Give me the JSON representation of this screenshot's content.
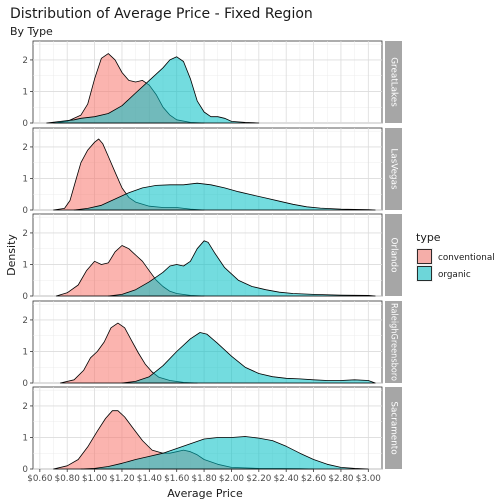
{
  "chart_data": {
    "type": "area",
    "title": "Distribution of Average Price - Fixed Region",
    "subtitle": "By Type",
    "xlabel": "Average Price",
    "ylabel": "Density",
    "xlim": [
      0.55,
      3.1
    ],
    "ylim": [
      0,
      2.6
    ],
    "x_ticks": [
      0.6,
      0.8,
      1.0,
      1.2,
      1.4,
      1.6,
      1.8,
      2.0,
      2.2,
      2.4,
      2.6,
      2.8,
      3.0
    ],
    "x_tick_labels": [
      "$0.60",
      "$0.80",
      "$1.00",
      "$1.20",
      "$1.40",
      "$1.60",
      "$1.80",
      "$2.00",
      "$2.20",
      "$2.40",
      "$2.60",
      "$2.80",
      "$3.00"
    ],
    "y_ticks": [
      0,
      1,
      2
    ],
    "y_tick_labels": [
      "0",
      "1",
      "2"
    ],
    "grid": true,
    "legend": {
      "title": "type",
      "position": "right",
      "entries": [
        {
          "label": "conventional",
          "color": "#F8766D"
        },
        {
          "label": "organic",
          "color": "#00BFC4"
        }
      ]
    },
    "panels": [
      {
        "region": "GreatLakes",
        "series": [
          {
            "type": "conventional",
            "points": [
              [
                0.7,
                0
              ],
              [
                0.8,
                0.05
              ],
              [
                0.9,
                0.25
              ],
              [
                0.95,
                0.6
              ],
              [
                1.0,
                1.4
              ],
              [
                1.05,
                2.05
              ],
              [
                1.1,
                2.2
              ],
              [
                1.15,
                2.0
              ],
              [
                1.2,
                1.6
              ],
              [
                1.25,
                1.35
              ],
              [
                1.3,
                1.3
              ],
              [
                1.35,
                1.35
              ],
              [
                1.4,
                1.2
              ],
              [
                1.45,
                0.9
              ],
              [
                1.5,
                0.5
              ],
              [
                1.55,
                0.25
              ],
              [
                1.6,
                0.1
              ],
              [
                1.7,
                0.02
              ],
              [
                1.8,
                0
              ]
            ]
          },
          {
            "type": "organic",
            "points": [
              [
                0.65,
                0
              ],
              [
                0.75,
                0.05
              ],
              [
                0.85,
                0.1
              ],
              [
                0.9,
                0.15
              ],
              [
                1.0,
                0.2
              ],
              [
                1.1,
                0.3
              ],
              [
                1.2,
                0.55
              ],
              [
                1.3,
                0.95
              ],
              [
                1.4,
                1.35
              ],
              [
                1.5,
                1.75
              ],
              [
                1.55,
                2.0
              ],
              [
                1.6,
                2.1
              ],
              [
                1.65,
                1.95
              ],
              [
                1.7,
                1.4
              ],
              [
                1.75,
                0.7
              ],
              [
                1.8,
                0.35
              ],
              [
                1.85,
                0.2
              ],
              [
                1.9,
                0.2
              ],
              [
                1.95,
                0.15
              ],
              [
                2.0,
                0.05
              ],
              [
                2.1,
                0.02
              ],
              [
                2.2,
                0
              ]
            ]
          }
        ]
      },
      {
        "region": "LasVegas",
        "series": [
          {
            "type": "conventional",
            "points": [
              [
                0.7,
                0
              ],
              [
                0.78,
                0.05
              ],
              [
                0.82,
                0.3
              ],
              [
                0.86,
                0.9
              ],
              [
                0.9,
                1.5
              ],
              [
                0.95,
                1.9
              ],
              [
                1.0,
                2.15
              ],
              [
                1.03,
                2.25
              ],
              [
                1.06,
                2.1
              ],
              [
                1.1,
                1.7
              ],
              [
                1.15,
                1.2
              ],
              [
                1.2,
                0.7
              ],
              [
                1.25,
                0.4
              ],
              [
                1.3,
                0.25
              ],
              [
                1.4,
                0.12
              ],
              [
                1.5,
                0.08
              ],
              [
                1.6,
                0.08
              ],
              [
                1.7,
                0.03
              ],
              [
                1.8,
                0
              ]
            ]
          },
          {
            "type": "organic",
            "points": [
              [
                0.85,
                0
              ],
              [
                0.95,
                0.05
              ],
              [
                1.05,
                0.15
              ],
              [
                1.15,
                0.35
              ],
              [
                1.25,
                0.55
              ],
              [
                1.35,
                0.7
              ],
              [
                1.45,
                0.78
              ],
              [
                1.55,
                0.8
              ],
              [
                1.65,
                0.8
              ],
              [
                1.75,
                0.85
              ],
              [
                1.85,
                0.8
              ],
              [
                1.95,
                0.7
              ],
              [
                2.05,
                0.58
              ],
              [
                2.15,
                0.48
              ],
              [
                2.25,
                0.38
              ],
              [
                2.35,
                0.28
              ],
              [
                2.45,
                0.18
              ],
              [
                2.55,
                0.1
              ],
              [
                2.65,
                0.06
              ],
              [
                2.8,
                0.03
              ],
              [
                3.0,
                0.01
              ],
              [
                3.05,
                0
              ]
            ]
          }
        ]
      },
      {
        "region": "Orlando",
        "series": [
          {
            "type": "conventional",
            "points": [
              [
                0.72,
                0
              ],
              [
                0.8,
                0.1
              ],
              [
                0.88,
                0.35
              ],
              [
                0.94,
                0.8
              ],
              [
                1.0,
                1.1
              ],
              [
                1.05,
                1.0
              ],
              [
                1.1,
                1.05
              ],
              [
                1.15,
                1.4
              ],
              [
                1.2,
                1.6
              ],
              [
                1.25,
                1.5
              ],
              [
                1.3,
                1.3
              ],
              [
                1.35,
                1.1
              ],
              [
                1.4,
                0.8
              ],
              [
                1.45,
                0.5
              ],
              [
                1.5,
                0.3
              ],
              [
                1.55,
                0.15
              ],
              [
                1.6,
                0.08
              ],
              [
                1.7,
                0.02
              ],
              [
                1.8,
                0
              ]
            ]
          },
          {
            "type": "organic",
            "points": [
              [
                1.1,
                0
              ],
              [
                1.2,
                0.05
              ],
              [
                1.3,
                0.2
              ],
              [
                1.4,
                0.45
              ],
              [
                1.5,
                0.75
              ],
              [
                1.55,
                0.95
              ],
              [
                1.6,
                1.0
              ],
              [
                1.65,
                0.95
              ],
              [
                1.7,
                1.1
              ],
              [
                1.75,
                1.5
              ],
              [
                1.8,
                1.75
              ],
              [
                1.83,
                1.7
              ],
              [
                1.88,
                1.35
              ],
              [
                1.95,
                0.9
              ],
              [
                2.05,
                0.5
              ],
              [
                2.15,
                0.3
              ],
              [
                2.25,
                0.2
              ],
              [
                2.35,
                0.12
              ],
              [
                2.45,
                0.08
              ],
              [
                2.6,
                0.05
              ],
              [
                2.8,
                0.03
              ],
              [
                3.0,
                0.02
              ],
              [
                3.05,
                0
              ]
            ]
          }
        ]
      },
      {
        "region": "RaleighGreensboro",
        "series": [
          {
            "type": "conventional",
            "points": [
              [
                0.75,
                0
              ],
              [
                0.85,
                0.1
              ],
              [
                0.92,
                0.4
              ],
              [
                0.97,
                0.8
              ],
              [
                1.02,
                1.0
              ],
              [
                1.07,
                1.3
              ],
              [
                1.12,
                1.75
              ],
              [
                1.17,
                1.9
              ],
              [
                1.22,
                1.75
              ],
              [
                1.27,
                1.35
              ],
              [
                1.32,
                0.95
              ],
              [
                1.37,
                0.6
              ],
              [
                1.42,
                0.35
              ],
              [
                1.47,
                0.18
              ],
              [
                1.55,
                0.08
              ],
              [
                1.65,
                0.02
              ],
              [
                1.75,
                0
              ]
            ]
          },
          {
            "type": "organic",
            "points": [
              [
                1.2,
                0
              ],
              [
                1.3,
                0.05
              ],
              [
                1.4,
                0.2
              ],
              [
                1.5,
                0.55
              ],
              [
                1.6,
                1.0
              ],
              [
                1.7,
                1.4
              ],
              [
                1.77,
                1.6
              ],
              [
                1.82,
                1.55
              ],
              [
                1.9,
                1.25
              ],
              [
                2.0,
                0.85
              ],
              [
                2.1,
                0.5
              ],
              [
                2.2,
                0.3
              ],
              [
                2.3,
                0.2
              ],
              [
                2.4,
                0.15
              ],
              [
                2.5,
                0.13
              ],
              [
                2.6,
                0.1
              ],
              [
                2.7,
                0.08
              ],
              [
                2.8,
                0.08
              ],
              [
                2.9,
                0.1
              ],
              [
                3.0,
                0.08
              ],
              [
                3.05,
                0
              ]
            ]
          }
        ]
      },
      {
        "region": "Sacramento",
        "series": [
          {
            "type": "conventional",
            "points": [
              [
                0.7,
                0
              ],
              [
                0.8,
                0.1
              ],
              [
                0.88,
                0.3
              ],
              [
                0.95,
                0.7
              ],
              [
                1.02,
                1.2
              ],
              [
                1.08,
                1.6
              ],
              [
                1.13,
                1.85
              ],
              [
                1.17,
                1.85
              ],
              [
                1.22,
                1.65
              ],
              [
                1.28,
                1.3
              ],
              [
                1.35,
                0.9
              ],
              [
                1.42,
                0.6
              ],
              [
                1.5,
                0.5
              ],
              [
                1.55,
                0.5
              ],
              [
                1.6,
                0.55
              ],
              [
                1.65,
                0.6
              ],
              [
                1.7,
                0.55
              ],
              [
                1.75,
                0.45
              ],
              [
                1.8,
                0.3
              ],
              [
                1.9,
                0.15
              ],
              [
                2.0,
                0.05
              ],
              [
                2.2,
                0.02
              ],
              [
                2.5,
                0.01
              ],
              [
                2.6,
                0
              ]
            ]
          },
          {
            "type": "organic",
            "points": [
              [
                0.9,
                0
              ],
              [
                1.0,
                0.02
              ],
              [
                1.1,
                0.08
              ],
              [
                1.2,
                0.18
              ],
              [
                1.3,
                0.3
              ],
              [
                1.4,
                0.4
              ],
              [
                1.5,
                0.5
              ],
              [
                1.6,
                0.65
              ],
              [
                1.7,
                0.8
              ],
              [
                1.8,
                0.95
              ],
              [
                1.9,
                1.0
              ],
              [
                2.0,
                1.0
              ],
              [
                2.1,
                1.03
              ],
              [
                2.2,
                0.98
              ],
              [
                2.3,
                0.9
              ],
              [
                2.4,
                0.72
              ],
              [
                2.5,
                0.5
              ],
              [
                2.6,
                0.3
              ],
              [
                2.7,
                0.15
              ],
              [
                2.8,
                0.05
              ],
              [
                2.9,
                0.02
              ],
              [
                3.0,
                0
              ]
            ]
          }
        ]
      }
    ]
  }
}
